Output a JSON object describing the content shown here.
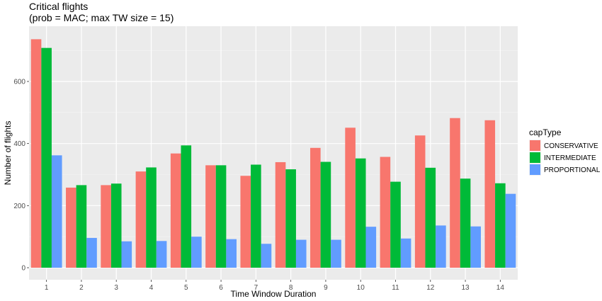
{
  "chart_data": {
    "type": "bar",
    "title": "Critical flights",
    "subtitle": "(prob = MAC; max TW size = 15)",
    "xlabel": "Time Window Duration",
    "ylabel": "Number of flights",
    "categories": [
      "1",
      "2",
      "3",
      "4",
      "5",
      "6",
      "7",
      "8",
      "9",
      "10",
      "11",
      "12",
      "13",
      "14"
    ],
    "y_ticks": [
      0,
      200,
      400,
      600
    ],
    "ylim": [
      0,
      750
    ],
    "grid": true,
    "legend_position": "right",
    "legend_title": "capType",
    "series": [
      {
        "name": "CONSERVATIVE",
        "color": "#F8766D",
        "values": [
          736,
          258,
          266,
          310,
          368,
          330,
          296,
          340,
          386,
          451,
          357,
          426,
          482,
          475
        ]
      },
      {
        "name": "INTERMEDIATE",
        "color": "#00BA38",
        "values": [
          708,
          266,
          271,
          323,
          394,
          330,
          332,
          317,
          341,
          352,
          277,
          322,
          287,
          272
        ]
      },
      {
        "name": "PROPORTIONAL",
        "color": "#619CFF",
        "values": [
          362,
          96,
          85,
          86,
          100,
          92,
          77,
          90,
          90,
          132,
          94,
          136,
          133,
          238
        ]
      }
    ]
  }
}
